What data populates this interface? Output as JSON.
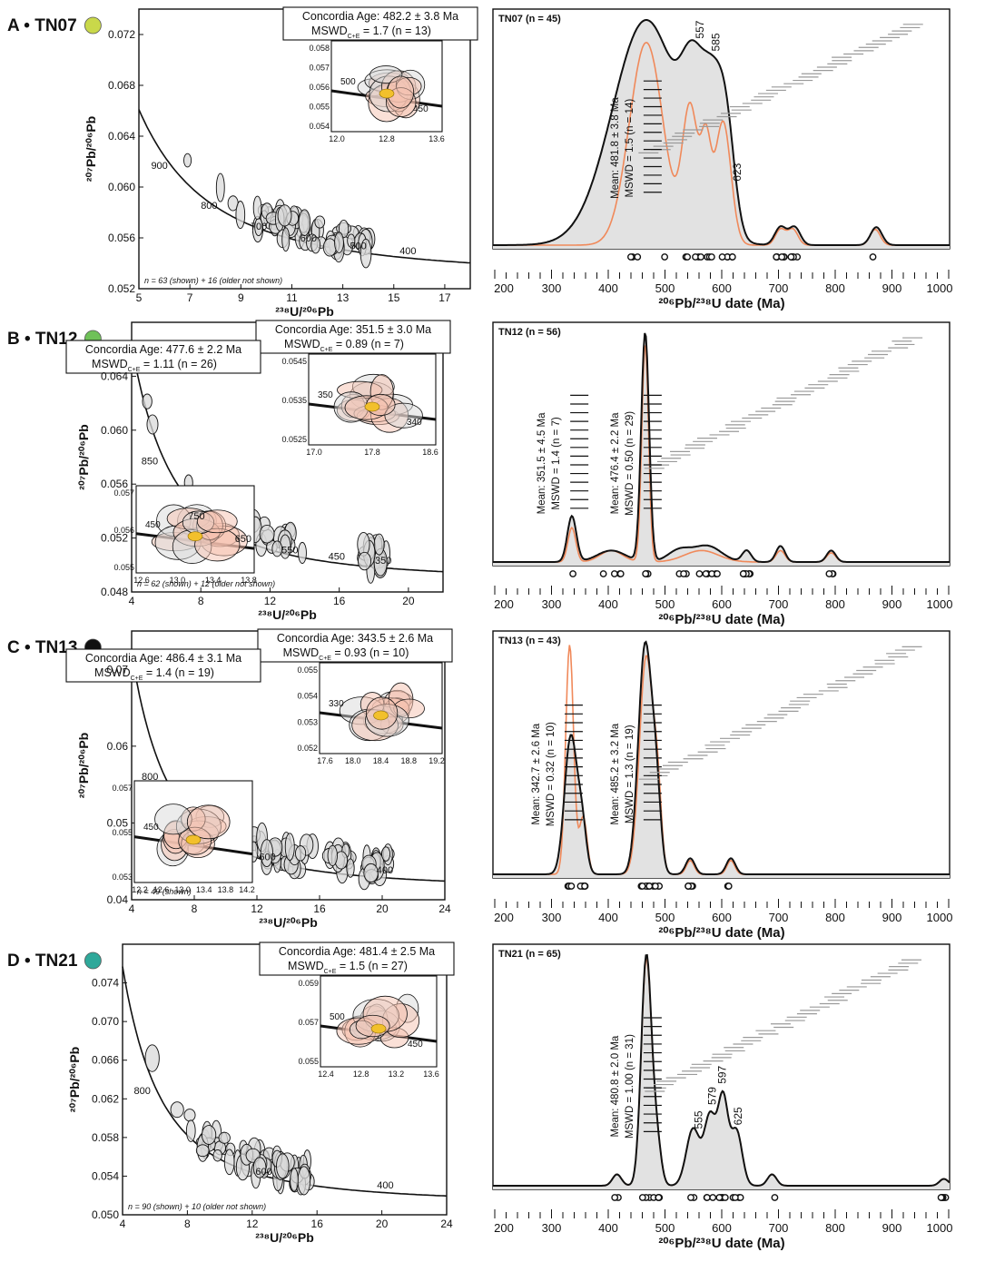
{
  "figure": {
    "x_axis_label_left": "²³⁸U/²⁰⁶Pb",
    "y_axis_label_left": "²⁰⁷Pb/²⁰⁶Pb",
    "x_axis_label_right": "²⁰⁶Pb/²³⁸U date (Ma)",
    "mswd_prefix": "MSWD",
    "mswd_sub": "C+E",
    "colors": {
      "kde_black": "#111111",
      "kde_orange": "#f0895a",
      "fill_gray": "#e2e2e2",
      "ellipse_gray": "#d9d9d9",
      "ellipse_pink": "#f5c2b0",
      "ellipse_yellow": "#f2c02c",
      "bar_gray": "#9a9a9a"
    }
  },
  "panels": [
    {
      "letter": "A • TN07",
      "dot_color": "#c9d84a",
      "concordia": {
        "xlim": [
          5,
          18
        ],
        "ylim": [
          0.052,
          0.074
        ],
        "xticks": [
          "5",
          "7",
          "9",
          "11",
          "13",
          "15",
          "17"
        ],
        "yticks": [
          "0.052",
          "0.056",
          "0.060",
          "0.064",
          "0.068",
          "0.072"
        ],
        "age_labels": [
          "900",
          "800",
          "700",
          "600",
          "500",
          "400"
        ],
        "note": "n = 63 (shown) + 16 (older not shown)",
        "boxes": [
          {
            "title": "Concordia Age: 482.2 ± 3.8 Ma",
            "mswd_tail": " = 1.7 (n = 13)"
          }
        ],
        "insets": [
          {
            "xticks": [
              "12.0",
              "12.8",
              "13.6"
            ],
            "yticks": [
              "0.058",
              "0.057",
              "0.056",
              "0.055",
              "0.054"
            ],
            "labels": [
              "500",
              "450"
            ]
          }
        ]
      },
      "kde": {
        "title": "TN07 (n = 45)",
        "xlim": [
          190,
          1000
        ],
        "peaks": [
          [
            462,
            60,
            1.0
          ],
          [
            545,
            20,
            0.45
          ],
          [
            580,
            18,
            0.5
          ],
          [
            605,
            15,
            0.4
          ],
          [
            700,
            10,
            0.08
          ],
          [
            725,
            10,
            0.08
          ],
          [
            870,
            10,
            0.08
          ]
        ],
        "orange_peaks": [
          [
            462,
            30,
            0.9
          ],
          [
            540,
            14,
            0.6
          ],
          [
            568,
            9,
            0.4
          ],
          [
            598,
            14,
            0.55
          ],
          [
            700,
            9,
            0.07
          ],
          [
            722,
            9,
            0.07
          ],
          [
            868,
            9,
            0.07
          ]
        ],
        "peak_labels": [
          "557",
          "585",
          "623"
        ],
        "means": [
          {
            "line1": "Mean: 481.8 ± 3.8 Ma",
            "line2": "MSWD = 1.5 (n = 14)"
          }
        ],
        "xtick_labels": [
          "200",
          "300",
          "400",
          "500",
          "600",
          "700",
          "800",
          "900",
          "1000"
        ]
      }
    },
    {
      "letter": "B • TN12",
      "dot_color": "#6fc158",
      "concordia": {
        "xlim": [
          4,
          22
        ],
        "ylim": [
          0.048,
          0.068
        ],
        "xticks": [
          "4",
          "8",
          "12",
          "16",
          "20"
        ],
        "yticks": [
          "0.048",
          "0.052",
          "0.056",
          "0.060",
          "0.064"
        ],
        "age_labels": [
          "850",
          "750",
          "650",
          "550",
          "450",
          "350"
        ],
        "note": "n = 62 (shown) + 12 (older not shown)",
        "boxes": [
          {
            "title": "Concordia Age: 351.5 ± 3.0 Ma",
            "mswd_tail": " = 0.89 (n = 7)"
          },
          {
            "title": "Concordia Age: 477.6 ± 2.2 Ma",
            "mswd_tail": " = 1.11 (n = 26)"
          }
        ],
        "insets": [
          {
            "xticks": [
              "17.0",
              "17.8",
              "18.6"
            ],
            "yticks": [
              "0.0545",
              "0.0535",
              "0.0525"
            ],
            "labels": [
              "350",
              "340"
            ]
          },
          {
            "xticks": [
              "12.6",
              "13.0",
              "13.4",
              "13.8"
            ],
            "yticks": [
              "0.057",
              "0.056",
              "0.055"
            ],
            "labels": [
              "450"
            ]
          }
        ]
      },
      "kde": {
        "title": "TN12 (n = 56)",
        "xlim": [
          190,
          1000
        ],
        "peaks": [
          [
            330,
            8,
            0.2
          ],
          [
            460,
            7,
            1.0
          ],
          [
            400,
            25,
            0.05
          ],
          [
            520,
            20,
            0.05
          ],
          [
            570,
            25,
            0.07
          ],
          [
            640,
            8,
            0.05
          ],
          [
            700,
            8,
            0.07
          ],
          [
            790,
            8,
            0.05
          ]
        ],
        "orange_peaks": [
          [
            330,
            7,
            0.15
          ],
          [
            460,
            6,
            0.95
          ],
          [
            400,
            20,
            0.05
          ],
          [
            560,
            30,
            0.05
          ],
          [
            700,
            8,
            0.05
          ],
          [
            790,
            8,
            0.04
          ]
        ],
        "peak_labels": [],
        "means": [
          {
            "line1": "Mean: 351.5 ± 4.5 Ma",
            "line2": "MSWD = 1.4 (n = 7)"
          },
          {
            "line1": "Mean: 476.4 ± 2.2 Ma",
            "line2": "MSWD = 0.50 (n = 29)"
          }
        ],
        "xtick_labels": [
          "200",
          "300",
          "400",
          "500",
          "600",
          "700",
          "800",
          "900",
          "1000"
        ]
      }
    },
    {
      "letter": "C • TN13",
      "dot_color": "#111111",
      "concordia": {
        "xlim": [
          4,
          24
        ],
        "ylim": [
          0.04,
          0.075
        ],
        "xticks": [
          "4",
          "8",
          "12",
          "16",
          "20",
          "24"
        ],
        "yticks": [
          "0.04",
          "0.05",
          "0.06",
          "0.07"
        ],
        "age_labels": [
          "800",
          "600",
          "400"
        ],
        "note": "n = 49 (shown)",
        "boxes": [
          {
            "title": "Concordia Age: 343.5 ± 2.6 Ma",
            "mswd_tail": " = 0.93 (n = 10)"
          },
          {
            "title": "Concordia Age: 486.4 ± 3.1 Ma",
            "mswd_tail": " = 1.4 (n = 19)"
          }
        ],
        "insets": [
          {
            "xticks": [
              "17.6",
              "18.0",
              "18.4",
              "18.8",
              "19.2"
            ],
            "yticks": [
              "0.055",
              "0.054",
              "0.053",
              "0.052"
            ],
            "labels": [
              "330"
            ]
          },
          {
            "xticks": [
              "12.2",
              "12.6",
              "13.0",
              "13.4",
              "13.8",
              "14.2"
            ],
            "yticks": [
              "0.057",
              "0.055",
              "0.053"
            ],
            "labels": [
              "450"
            ]
          }
        ]
      },
      "kde": {
        "title": "TN13 (n = 43)",
        "xlim": [
          190,
          1000
        ],
        "peaks": [
          [
            328,
            11,
            0.6
          ],
          [
            348,
            8,
            0.2
          ],
          [
            460,
            12,
            1.0
          ],
          [
            480,
            8,
            0.3
          ],
          [
            540,
            8,
            0.07
          ],
          [
            612,
            8,
            0.07
          ]
        ],
        "orange_peaks": [
          [
            326,
            7,
            1.0
          ],
          [
            350,
            7,
            0.25
          ],
          [
            462,
            12,
            0.95
          ],
          [
            482,
            7,
            0.3
          ],
          [
            540,
            7,
            0.06
          ],
          [
            612,
            7,
            0.06
          ]
        ],
        "peak_labels": [],
        "means": [
          {
            "line1": "Mean: 342.7 ± 2.6 Ma",
            "line2": "MSWD = 0.32 (n = 10)"
          },
          {
            "line1": "Mean: 485.2 ± 3.2 Ma",
            "line2": "MSWD = 1.3 (n = 19)"
          }
        ],
        "xtick_labels": [
          "200",
          "300",
          "400",
          "500",
          "600",
          "700",
          "800",
          "900",
          "1000"
        ]
      }
    },
    {
      "letter": "D • TN21",
      "dot_color": "#2fa89a",
      "concordia": {
        "xlim": [
          4,
          24
        ],
        "ylim": [
          0.05,
          0.078
        ],
        "xticks": [
          "4",
          "8",
          "12",
          "16",
          "20",
          "24"
        ],
        "yticks": [
          "0.050",
          "0.054",
          "0.058",
          "0.062",
          "0.066",
          "0.070",
          "0.074"
        ],
        "age_labels": [
          "800",
          "600",
          "400"
        ],
        "note": "n = 90 (shown) + 10 (older not shown)",
        "boxes": [
          {
            "title": "Concordia Age: 481.4 ± 2.5 Ma",
            "mswd_tail": " = 1.5 (n = 27)"
          }
        ],
        "insets": [
          {
            "xticks": [
              "12.4",
              "12.8",
              "13.2",
              "13.6"
            ],
            "yticks": [
              "0.059",
              "0.057",
              "0.055"
            ],
            "labels": [
              "500",
              "450"
            ]
          }
        ]
      },
      "kde": {
        "title": "TN21 (n = 65)",
        "xlim": [
          190,
          1000
        ],
        "peaks": [
          [
            410,
            8,
            0.05
          ],
          [
            462,
            9,
            1.0
          ],
          [
            480,
            8,
            0.2
          ],
          [
            545,
            12,
            0.25
          ],
          [
            575,
            10,
            0.3
          ],
          [
            598,
            9,
            0.38
          ],
          [
            622,
            10,
            0.24
          ],
          [
            685,
            8,
            0.05
          ],
          [
            990,
            8,
            0.03
          ]
        ],
        "orange_peaks": [
          [
            410,
            8,
            0.05
          ],
          [
            462,
            9,
            0.98
          ],
          [
            480,
            8,
            0.2
          ],
          [
            545,
            12,
            0.25
          ],
          [
            575,
            10,
            0.3
          ],
          [
            598,
            9,
            0.38
          ],
          [
            622,
            10,
            0.24
          ],
          [
            685,
            8,
            0.05
          ],
          [
            990,
            8,
            0.03
          ]
        ],
        "peak_labels": [
          "555",
          "579",
          "597",
          "625"
        ],
        "means": [
          {
            "line1": "Mean: 480.8 ± 2.0 Ma",
            "line2": "MSWD = 1.00 (n = 31)"
          }
        ],
        "xtick_labels": [
          "200",
          "300",
          "400",
          "500",
          "600",
          "700",
          "800",
          "900",
          "1000"
        ]
      }
    }
  ]
}
